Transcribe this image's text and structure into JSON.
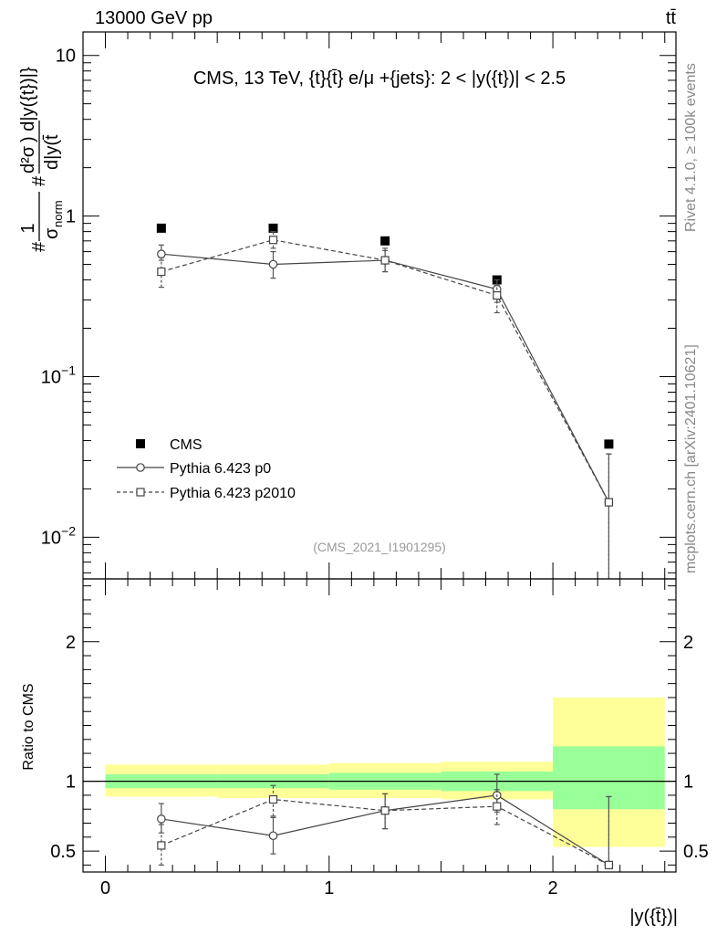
{
  "header": {
    "energy_label": "13000 GeV pp",
    "process_label": "tt̄"
  },
  "side_labels": {
    "rivet": "Rivet 4.1.0, ≥ 100k events",
    "mcplots": "mcplots.cern.ch [arXiv:2401.10621]"
  },
  "chart_data": [
    {
      "type": "scatter",
      "panel": "main",
      "title": "CMS, 13 TeV, {t}{t̄} e/μ +{jets}: 2 < |y({t})| < 2.5",
      "watermark": "(CMS_2021_I1901295)",
      "ylabel_parts": {
        "hash1": "#",
        "one": "1",
        "sigma_norm": "σ",
        "sub_norm": "norm",
        "hash2": "#",
        "num": "d²σ",
        "num_tail": ") d|y({t})|}",
        "den": "d|y(t̄",
        "den_tail": "|}"
      },
      "yscale": "log",
      "ylim": [
        0.0055,
        14
      ],
      "xlim": [
        -0.1,
        2.55
      ],
      "y_ticks": [
        {
          "value": 0.01,
          "label": "10",
          "exp": "−2"
        },
        {
          "value": 0.1,
          "label": "10",
          "exp": "−1"
        },
        {
          "value": 1,
          "label": "1",
          "exp": ""
        },
        {
          "value": 10,
          "label": "10",
          "exp": ""
        }
      ],
      "legend": {
        "position": "bottom-left",
        "entries": [
          "CMS",
          "Pythia 6.423 p0",
          "Pythia 6.423 p2010"
        ]
      },
      "series": [
        {
          "name": "CMS",
          "marker": "filled-square",
          "x": [
            0.25,
            0.75,
            1.25,
            1.75,
            2.25
          ],
          "y": [
            0.84,
            0.84,
            0.7,
            0.4,
            0.038
          ]
        },
        {
          "name": "Pythia 6.423 p0",
          "marker": "open-circle",
          "line": "solid",
          "x": [
            0.25,
            0.75,
            1.25,
            1.75,
            2.25
          ],
          "y": [
            0.58,
            0.5,
            0.53,
            0.35,
            0.0165
          ],
          "yerr_low": [
            0.53,
            0.41,
            0.45,
            0.29,
            0.0011
          ],
          "yerr_high": [
            0.66,
            0.6,
            0.63,
            0.4,
            0.033
          ]
        },
        {
          "name": "Pythia 6.423 p2010",
          "marker": "open-square",
          "line": "dashed",
          "x": [
            0.25,
            0.75,
            1.25,
            1.75,
            2.25
          ],
          "y": [
            0.45,
            0.71,
            0.53,
            0.32,
            0.0165
          ],
          "yerr_low": [
            0.36,
            0.63,
            0.45,
            0.25,
            0.0011
          ],
          "yerr_high": [
            0.55,
            0.8,
            0.61,
            0.37,
            0.033
          ]
        }
      ]
    },
    {
      "type": "scatter",
      "panel": "ratio",
      "ylabel": "Ratio to CMS",
      "xlabel": "|y({t̄})|",
      "ylim": [
        0.35,
        2.45
      ],
      "xlim": [
        -0.1,
        2.55
      ],
      "x_ticks": [
        0,
        1,
        2
      ],
      "x_tick_labels": [
        "0",
        "1",
        "2"
      ],
      "y_ticks": [
        0.5,
        1,
        2
      ],
      "y_tick_labels": [
        "0.5",
        "1",
        "2"
      ],
      "bands": {
        "x_edges": [
          0,
          0.5,
          1,
          1.5,
          2,
          2.5
        ],
        "stat_low": [
          0.95,
          0.95,
          0.94,
          0.93,
          0.8
        ],
        "stat_high": [
          1.05,
          1.05,
          1.06,
          1.07,
          1.25
        ],
        "total_low": [
          0.89,
          0.88,
          0.88,
          0.87,
          0.53
        ],
        "total_high": [
          1.12,
          1.12,
          1.13,
          1.14,
          1.6
        ],
        "stat_color": "#99ff99",
        "total_color": "#ffff99"
      },
      "series": [
        {
          "name": "Pythia 6.423 p0",
          "marker": "open-circle",
          "line": "solid",
          "x": [
            0.25,
            0.75,
            1.25,
            1.75,
            2.25
          ],
          "y": [
            0.73,
            0.61,
            0.79,
            0.9,
            0.4
          ],
          "yerr_low": [
            0.63,
            0.48,
            0.66,
            0.78,
            0.38
          ],
          "yerr_high": [
            0.84,
            0.74,
            0.91,
            1.05,
            0.89
          ]
        },
        {
          "name": "Pythia 6.423 p2010",
          "marker": "open-square",
          "line": "dashed",
          "x": [
            0.25,
            0.75,
            1.25,
            1.75,
            2.25
          ],
          "y": [
            0.54,
            0.87,
            0.79,
            0.82,
            0.4
          ],
          "yerr_low": [
            0.4,
            0.75,
            0.66,
            0.69,
            0.38
          ],
          "yerr_high": [
            0.69,
            0.97,
            0.91,
            0.94,
            0.89
          ]
        }
      ]
    }
  ]
}
